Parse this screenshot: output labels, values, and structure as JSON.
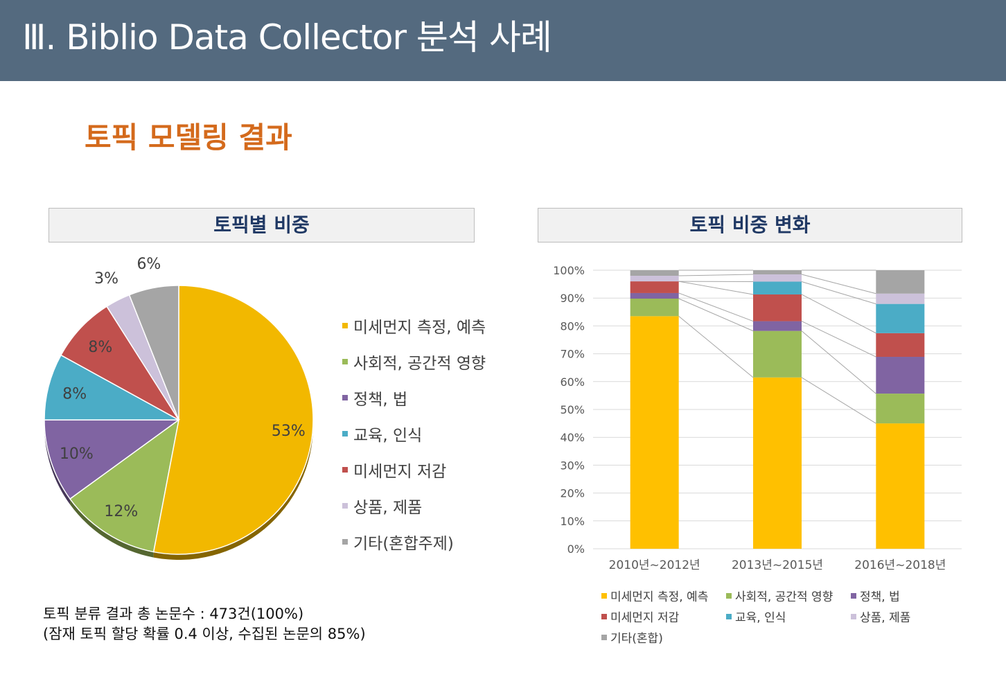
{
  "header": {
    "title": "Ⅲ. Biblio Data Collector 분석 사례"
  },
  "subtitle": "토픽 모델링 결과",
  "panels": {
    "left_title": "토픽별 비중",
    "right_title": "토픽 비중 변화"
  },
  "note": {
    "line1": "토픽 분류 결과 총 논문수 : 473건(100%)",
    "line2": "(잠재 토픽 할당 확률 0.4 이상, 수집된 논문의 85%)"
  },
  "chart_data": [
    {
      "type": "pie",
      "title": "토픽별 비중",
      "categories": [
        "미세먼지 측정, 예측",
        "사회적, 공간적 영향",
        "정책, 법",
        "교육, 인식",
        "미세먼지 저감",
        "상품, 제품",
        "기타(혼합주제)"
      ],
      "values": [
        53,
        12,
        10,
        8,
        8,
        3,
        6
      ],
      "labels": [
        "53%",
        "12%",
        "10%",
        "8%",
        "8%",
        "3%",
        "6%"
      ],
      "colors": [
        "#f2b800",
        "#9bbb59",
        "#8064a2",
        "#4bacc6",
        "#c0504d",
        "#ccc1da",
        "#a5a5a5"
      ],
      "legend_position": "right"
    },
    {
      "type": "bar",
      "stacked": "percent",
      "title": "토픽 비중 변화",
      "categories": [
        "2010년~2012년",
        "2013년~2015년",
        "2016년~2018년"
      ],
      "series": [
        {
          "name": "미세먼지 측정, 예측",
          "values": [
            83.5,
            61.5,
            45.0
          ],
          "color": "#ffc000"
        },
        {
          "name": "사회적, 공간적 영향",
          "values": [
            6.3,
            16.7,
            10.7
          ],
          "color": "#9bbb59"
        },
        {
          "name": "정책, 법",
          "values": [
            2.0,
            3.5,
            13.2
          ],
          "color": "#8064a2"
        },
        {
          "name": "미세먼지 저감",
          "values": [
            4.2,
            9.6,
            8.5
          ],
          "color": "#c0504d"
        },
        {
          "name": "교육, 인식",
          "values": [
            0.0,
            4.6,
            10.5
          ],
          "color": "#4bacc6"
        },
        {
          "name": "상품, 제품",
          "values": [
            2.0,
            2.6,
            3.7
          ],
          "color": "#ccc1da"
        },
        {
          "name": "기타(혼합)",
          "values": [
            2.0,
            1.5,
            8.4
          ],
          "color": "#a5a5a5"
        }
      ],
      "ylim": [
        0,
        100
      ],
      "yticks": [
        "0%",
        "10%",
        "20%",
        "30%",
        "40%",
        "50%",
        "60%",
        "70%",
        "80%",
        "90%",
        "100%"
      ],
      "series_lines": true,
      "grid": true,
      "legend_position": "bottom",
      "legend_order": [
        "미세먼지 측정, 예측",
        "사회적, 공간적 영향",
        "정책, 법",
        "미세먼지 저감",
        "교육, 인식",
        "상품, 제품",
        "기타(혼합)"
      ]
    }
  ]
}
